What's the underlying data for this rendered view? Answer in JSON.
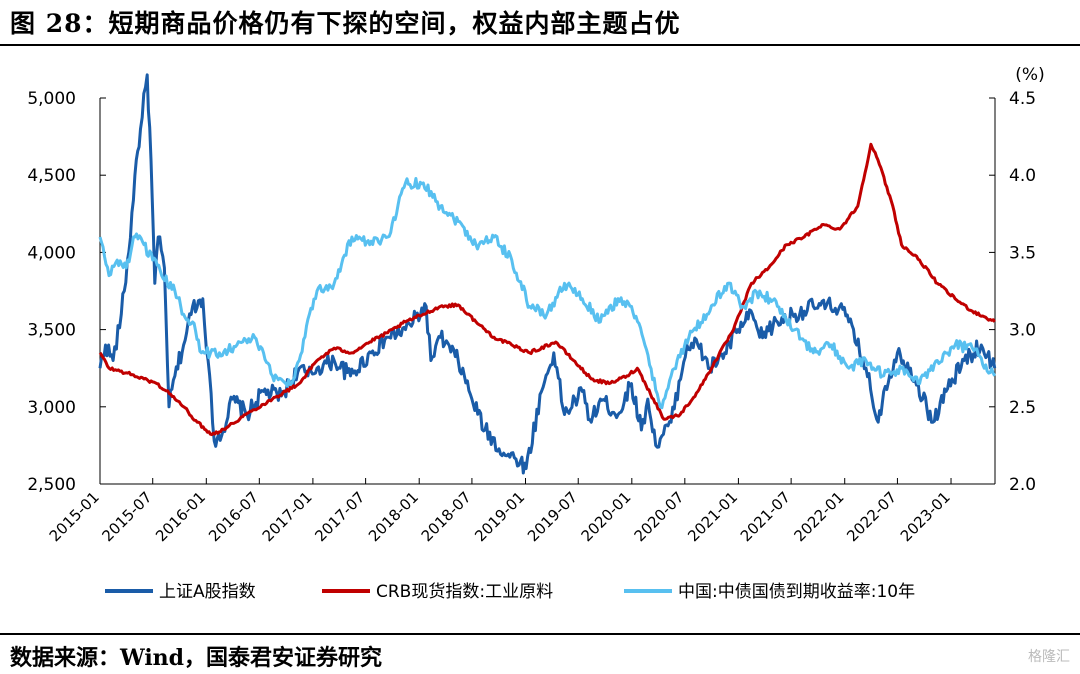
{
  "header": {
    "title": "图 28：短期商品价格仍有下探的空间，权益内部主题占优"
  },
  "footer": {
    "source": "数据来源：Wind，国泰君安证券研究",
    "watermark": "格隆汇"
  },
  "chart_data": {
    "type": "line",
    "x_ticks": [
      "2015-01",
      "2015-07",
      "2016-01",
      "2016-07",
      "2017-01",
      "2017-07",
      "2018-01",
      "2018-07",
      "2019-01",
      "2019-07",
      "2020-01",
      "2020-07",
      "2021-01",
      "2021-07",
      "2022-01",
      "2022-07",
      "2023-01"
    ],
    "left_axis": {
      "ylim": [
        2500,
        5000
      ],
      "ticks": [
        "2,500",
        "3,000",
        "3,500",
        "4,000",
        "4,500",
        "5,000"
      ]
    },
    "right_axis": {
      "unit": "(%)",
      "ylim": [
        2.0,
        4.5
      ],
      "ticks": [
        "2.0",
        "2.5",
        "3.0",
        "3.5",
        "4.0",
        "4.5"
      ]
    },
    "legend_position": "bottom",
    "series": [
      {
        "name": "上证A股指数",
        "axis": "left",
        "color": "#1a5ca8",
        "points": [
          [
            "2015-01-01",
            3250
          ],
          [
            "2015-01-20",
            3400
          ],
          [
            "2015-02-15",
            3300
          ],
          [
            "2015-03-15",
            3600
          ],
          [
            "2015-04-10",
            4000
          ],
          [
            "2015-05-01",
            4500
          ],
          [
            "2015-05-20",
            4800
          ],
          [
            "2015-06-12",
            5150
          ],
          [
            "2015-06-25",
            4600
          ],
          [
            "2015-07-08",
            3800
          ],
          [
            "2015-07-20",
            4100
          ],
          [
            "2015-08-10",
            3900
          ],
          [
            "2015-08-26",
            3000
          ],
          [
            "2015-09-15",
            3200
          ],
          [
            "2015-10-15",
            3400
          ],
          [
            "2015-11-15",
            3650
          ],
          [
            "2015-12-20",
            3700
          ],
          [
            "2016-01-07",
            3300
          ],
          [
            "2016-01-28",
            2780
          ],
          [
            "2016-02-28",
            2850
          ],
          [
            "2016-03-31",
            3050
          ],
          [
            "2016-05-20",
            2950
          ],
          [
            "2016-07-15",
            3100
          ],
          [
            "2016-09-15",
            3070
          ],
          [
            "2016-11-15",
            3250
          ],
          [
            "2016-12-15",
            3200
          ],
          [
            "2017-01-15",
            3250
          ],
          [
            "2017-03-15",
            3300
          ],
          [
            "2017-05-10",
            3200
          ],
          [
            "2017-07-20",
            3350
          ],
          [
            "2017-09-15",
            3450
          ],
          [
            "2017-11-15",
            3500
          ],
          [
            "2018-01-25",
            3650
          ],
          [
            "2018-02-10",
            3300
          ],
          [
            "2018-03-15",
            3450
          ],
          [
            "2018-05-15",
            3300
          ],
          [
            "2018-07-01",
            3050
          ],
          [
            "2018-08-15",
            2850
          ],
          [
            "2018-10-18",
            2700
          ],
          [
            "2018-12-15",
            2650
          ],
          [
            "2019-01-03",
            2600
          ],
          [
            "2019-02-25",
            3100
          ],
          [
            "2019-04-08",
            3350
          ],
          [
            "2019-05-15",
            2950
          ],
          [
            "2019-07-15",
            3100
          ],
          [
            "2019-08-15",
            2900
          ],
          [
            "2019-09-15",
            3050
          ],
          [
            "2019-11-15",
            2950
          ],
          [
            "2019-12-31",
            3150
          ],
          [
            "2020-02-03",
            2850
          ],
          [
            "2020-02-25",
            3050
          ],
          [
            "2020-03-23",
            2750
          ],
          [
            "2020-05-15",
            2900
          ],
          [
            "2020-07-08",
            3400
          ],
          [
            "2020-08-15",
            3400
          ],
          [
            "2020-09-25",
            3250
          ],
          [
            "2020-11-15",
            3350
          ],
          [
            "2020-12-31",
            3500
          ],
          [
            "2021-02-18",
            3600
          ],
          [
            "2021-03-15",
            3450
          ],
          [
            "2021-05-15",
            3550
          ],
          [
            "2021-07-15",
            3600
          ],
          [
            "2021-09-15",
            3650
          ],
          [
            "2021-12-15",
            3650
          ],
          [
            "2022-01-15",
            3550
          ],
          [
            "2022-03-15",
            3250
          ],
          [
            "2022-04-26",
            2900
          ],
          [
            "2022-05-15",
            3100
          ],
          [
            "2022-07-01",
            3350
          ],
          [
            "2022-08-15",
            3250
          ],
          [
            "2022-10-31",
            2900
          ],
          [
            "2022-12-15",
            3100
          ],
          [
            "2023-02-15",
            3300
          ],
          [
            "2023-04-15",
            3400
          ],
          [
            "2023-05-31",
            3250
          ]
        ]
      },
      {
        "name": "CRB现货指数:工业原料",
        "axis": "left",
        "color": "#c00000",
        "points": [
          [
            "2015-01-01",
            3350
          ],
          [
            "2015-02-01",
            3250
          ],
          [
            "2015-04-01",
            3220
          ],
          [
            "2015-06-01",
            3180
          ],
          [
            "2015-07-15",
            3150
          ],
          [
            "2015-09-01",
            3080
          ],
          [
            "2015-10-15",
            3000
          ],
          [
            "2015-12-01",
            2900
          ],
          [
            "2016-01-20",
            2820
          ],
          [
            "2016-03-15",
            2870
          ],
          [
            "2016-05-15",
            2950
          ],
          [
            "2016-08-15",
            3050
          ],
          [
            "2016-11-15",
            3150
          ],
          [
            "2017-01-15",
            3300
          ],
          [
            "2017-03-15",
            3380
          ],
          [
            "2017-05-15",
            3350
          ],
          [
            "2017-07-15",
            3420
          ],
          [
            "2017-09-15",
            3480
          ],
          [
            "2017-11-15",
            3550
          ],
          [
            "2018-01-15",
            3600
          ],
          [
            "2018-03-15",
            3650
          ],
          [
            "2018-05-15",
            3660
          ],
          [
            "2018-07-15",
            3550
          ],
          [
            "2018-09-15",
            3450
          ],
          [
            "2018-11-15",
            3400
          ],
          [
            "2019-01-15",
            3350
          ],
          [
            "2019-04-15",
            3420
          ],
          [
            "2019-06-15",
            3300
          ],
          [
            "2019-08-15",
            3180
          ],
          [
            "2019-10-15",
            3150
          ],
          [
            "2019-12-15",
            3200
          ],
          [
            "2020-01-20",
            3250
          ],
          [
            "2020-03-15",
            3050
          ],
          [
            "2020-04-20",
            2920
          ],
          [
            "2020-06-15",
            2950
          ],
          [
            "2020-08-15",
            3100
          ],
          [
            "2020-10-15",
            3300
          ],
          [
            "2020-12-15",
            3500
          ],
          [
            "2021-02-15",
            3800
          ],
          [
            "2021-04-15",
            3900
          ],
          [
            "2021-06-15",
            4050
          ],
          [
            "2021-08-15",
            4100
          ],
          [
            "2021-10-15",
            4180
          ],
          [
            "2021-12-15",
            4150
          ],
          [
            "2022-02-15",
            4300
          ],
          [
            "2022-04-01",
            4700
          ],
          [
            "2022-04-25",
            4600
          ],
          [
            "2022-06-15",
            4300
          ],
          [
            "2022-07-15",
            4050
          ],
          [
            "2022-09-15",
            3950
          ],
          [
            "2022-11-15",
            3800
          ],
          [
            "2023-01-15",
            3700
          ],
          [
            "2023-03-15",
            3620
          ],
          [
            "2023-05-31",
            3550
          ]
        ]
      },
      {
        "name": "中国:中债国债到期收益率:10年",
        "axis": "right",
        "color": "#58c0f0",
        "points": [
          [
            "2015-01-01",
            3.6
          ],
          [
            "2015-02-01",
            3.35
          ],
          [
            "2015-03-01",
            3.45
          ],
          [
            "2015-04-01",
            3.4
          ],
          [
            "2015-05-01",
            3.6
          ],
          [
            "2015-06-01",
            3.55
          ],
          [
            "2015-07-01",
            3.45
          ],
          [
            "2015-08-01",
            3.35
          ],
          [
            "2015-09-15",
            3.25
          ],
          [
            "2015-10-15",
            3.1
          ],
          [
            "2015-11-15",
            3.05
          ],
          [
            "2015-12-15",
            2.85
          ],
          [
            "2016-02-15",
            2.85
          ],
          [
            "2016-04-15",
            2.9
          ],
          [
            "2016-06-15",
            2.95
          ],
          [
            "2016-08-15",
            2.7
          ],
          [
            "2016-10-20",
            2.65
          ],
          [
            "2016-11-15",
            2.8
          ],
          [
            "2016-12-20",
            3.1
          ],
          [
            "2017-01-15",
            3.25
          ],
          [
            "2017-03-15",
            3.3
          ],
          [
            "2017-05-15",
            3.6
          ],
          [
            "2017-07-15",
            3.55
          ],
          [
            "2017-09-15",
            3.6
          ],
          [
            "2017-11-15",
            3.95
          ],
          [
            "2018-01-15",
            3.95
          ],
          [
            "2018-03-15",
            3.8
          ],
          [
            "2018-05-15",
            3.7
          ],
          [
            "2018-07-15",
            3.55
          ],
          [
            "2018-09-15",
            3.6
          ],
          [
            "2018-11-15",
            3.45
          ],
          [
            "2019-01-15",
            3.15
          ],
          [
            "2019-03-15",
            3.1
          ],
          [
            "2019-05-15",
            3.3
          ],
          [
            "2019-07-15",
            3.2
          ],
          [
            "2019-09-15",
            3.05
          ],
          [
            "2019-11-15",
            3.2
          ],
          [
            "2019-12-31",
            3.15
          ],
          [
            "2020-02-15",
            2.9
          ],
          [
            "2020-04-08",
            2.5
          ],
          [
            "2020-05-15",
            2.7
          ],
          [
            "2020-07-15",
            2.95
          ],
          [
            "2020-09-15",
            3.1
          ],
          [
            "2020-11-25",
            3.3
          ],
          [
            "2021-01-15",
            3.15
          ],
          [
            "2021-03-15",
            3.25
          ],
          [
            "2021-05-15",
            3.15
          ],
          [
            "2021-07-15",
            3.0
          ],
          [
            "2021-09-15",
            2.85
          ],
          [
            "2021-11-15",
            2.9
          ],
          [
            "2022-01-15",
            2.75
          ],
          [
            "2022-03-15",
            2.8
          ],
          [
            "2022-05-15",
            2.7
          ],
          [
            "2022-07-15",
            2.75
          ],
          [
            "2022-09-15",
            2.65
          ],
          [
            "2022-11-15",
            2.8
          ],
          [
            "2023-01-15",
            2.9
          ],
          [
            "2023-03-15",
            2.88
          ],
          [
            "2023-05-31",
            2.7
          ]
        ]
      }
    ]
  }
}
